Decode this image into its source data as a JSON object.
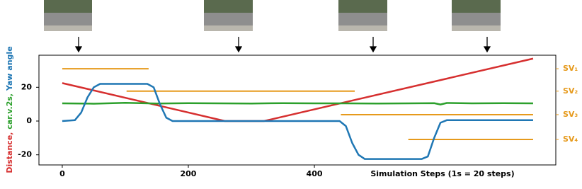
{
  "chart_data": {
    "type": "line",
    "xlim": [
      -37,
      783
    ],
    "ylim": [
      -26,
      39
    ],
    "xticks": [
      0,
      200,
      400
    ],
    "yticks": [
      -20,
      0,
      20
    ],
    "x_label": "Simulation Steps (1s = 20 steps)",
    "y_label_parts": [
      {
        "text": "Distance,",
        "color": "#d62f2f"
      },
      {
        "text": " car.v.2s,",
        "color": "#2ca02c"
      },
      {
        "text": " Yaw angle",
        "color": "#1f77b4"
      }
    ],
    "series": [
      {
        "color": "#d62f2f",
        "x": [
          0,
          258,
          320,
          747
        ],
        "values": [
          22.5,
          0,
          0,
          37
        ]
      },
      {
        "color": "#2ca02c",
        "x": [
          0,
          50,
          100,
          150,
          200,
          250,
          300,
          350,
          400,
          450,
          500,
          550,
          590,
          600,
          610,
          650,
          700,
          747
        ],
        "values": [
          10.5,
          10.3,
          10.8,
          10.4,
          10.6,
          10.5,
          10.4,
          10.6,
          10.5,
          10.5,
          10.4,
          10.5,
          10.6,
          9.8,
          10.7,
          10.5,
          10.6,
          10.5
        ]
      },
      {
        "color": "#1f77b4",
        "x": [
          0,
          20,
          30,
          40,
          50,
          60,
          135,
          145,
          155,
          165,
          175,
          440,
          450,
          460,
          470,
          480,
          570,
          580,
          590,
          600,
          610,
          747
        ],
        "values": [
          0,
          0.5,
          5,
          14,
          20,
          22,
          22,
          20,
          10,
          2,
          0,
          0,
          -3,
          -13,
          -20,
          -22.5,
          -22.5,
          -21,
          -10,
          -1,
          0.5,
          0.5
        ]
      }
    ],
    "sv_color": "#e69a1c",
    "sv_lines": [
      {
        "label": "SV₁",
        "y": 31,
        "x": [
          0,
          137
        ]
      },
      {
        "label": "SV₂",
        "y": 17.7,
        "x": [
          102,
          464
        ]
      },
      {
        "label": "SV₃",
        "y": 3.8,
        "x": [
          442,
          747
        ]
      },
      {
        "label": "SV₄",
        "y": -10.9,
        "x": [
          549,
          747
        ]
      }
    ]
  }
}
